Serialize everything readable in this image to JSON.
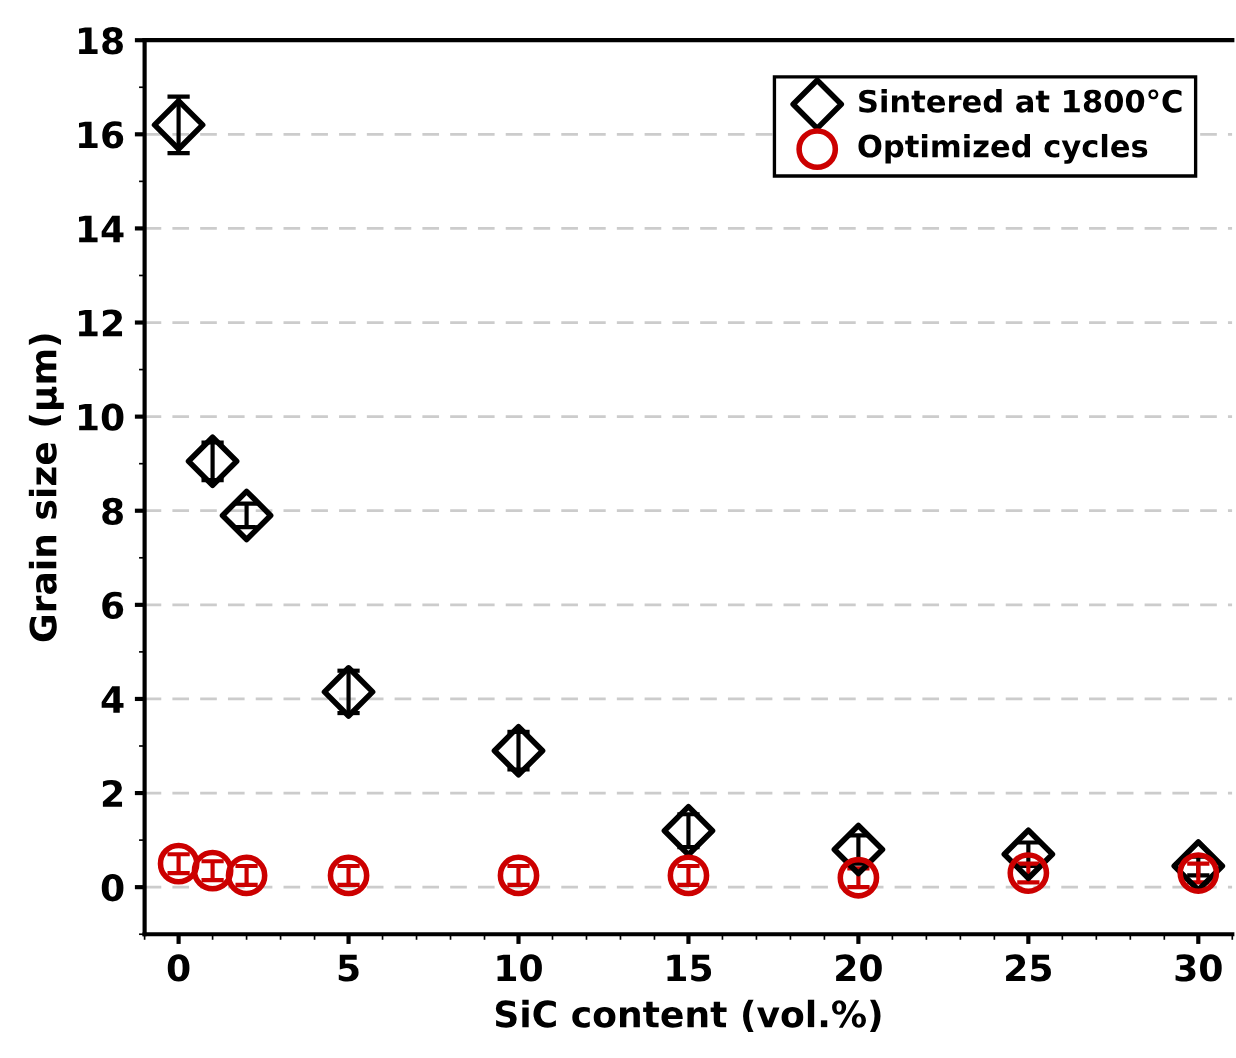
{
  "chart_data": {
    "type": "scatter",
    "xlabel": "SiC content (vol.%)",
    "ylabel": "Grain size (μm)",
    "x": [
      0,
      1,
      2,
      5,
      10,
      15,
      20,
      25,
      30
    ],
    "series": [
      {
        "name": "Sintered at 1800°C",
        "color": "#000000",
        "marker": "diamond",
        "values": [
          16.2,
          9.05,
          7.9,
          4.15,
          2.9,
          1.2,
          0.8,
          0.7,
          0.45
        ],
        "errors": [
          0.6,
          0.4,
          0.25,
          0.45,
          0.4,
          0.35,
          0.3,
          0.25,
          0.2
        ]
      },
      {
        "name": "Optimized cycles",
        "color": "#cc0000",
        "marker": "circle",
        "values": [
          0.5,
          0.35,
          0.25,
          0.25,
          0.25,
          0.25,
          0.2,
          0.3,
          0.3
        ],
        "errors": [
          0.2,
          0.2,
          0.2,
          0.2,
          0.2,
          0.2,
          0.2,
          0.2,
          0.2
        ]
      }
    ],
    "xlim": [
      -1,
      31
    ],
    "xticks": [
      0,
      5,
      10,
      15,
      20,
      25,
      30
    ],
    "ylim": [
      -1,
      18
    ],
    "yticks": [
      0,
      2,
      4,
      6,
      8,
      10,
      12,
      14,
      16,
      18
    ],
    "grid": "y",
    "legend": "top right"
  }
}
